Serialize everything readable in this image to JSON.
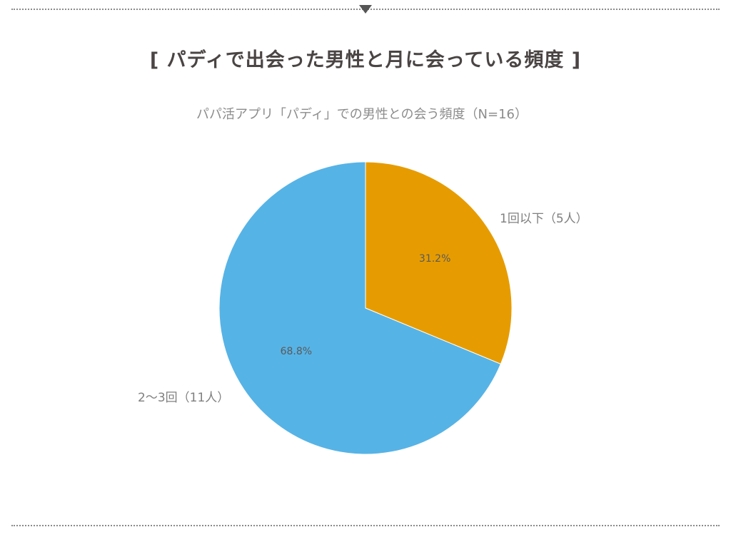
{
  "heading": "[ パディで出会った男性と月に会っている頻度 ]",
  "chart_data": {
    "type": "pie",
    "title": "パパ活アプリ「パディ」での男性との会う頻度（N=16）",
    "slices": [
      {
        "label": "1回以下（5人）",
        "value": 5,
        "percent_label": "31.2%",
        "color": "#e69c00"
      },
      {
        "label": "2〜3回（11人）",
        "value": 11,
        "percent_label": "68.8%",
        "color": "#56b3e6"
      }
    ]
  }
}
